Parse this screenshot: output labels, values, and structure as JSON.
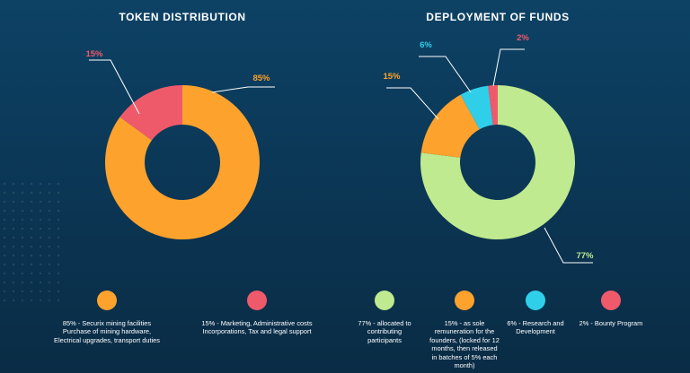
{
  "chart_data": [
    {
      "type": "pie",
      "title": "TOKEN DISTRIBUTION",
      "slices": [
        {
          "label": "85%",
          "value": 85,
          "color": "#fda22c",
          "legend": "85% - Securix mining facilities Purchase of mining hardware, Electrical upgrades, transport duties"
        },
        {
          "label": "15%",
          "value": 15,
          "color": "#ef5a6b",
          "legend": "15% - Marketing, Administrative costs Incorporations, Tax and legal support"
        }
      ]
    },
    {
      "type": "pie",
      "title": "DEPLOYMENT OF FUNDS",
      "slices": [
        {
          "label": "77%",
          "value": 77,
          "color": "#bfea8f",
          "legend": "77% - allocated to contributing participants"
        },
        {
          "label": "15%",
          "value": 15,
          "color": "#fda22c",
          "legend": "15% - as sole remuneration for the founders, (locked for 12 months, then released in batches of 5% each month)"
        },
        {
          "label": "6%",
          "value": 6,
          "color": "#2fcfea",
          "legend": "6% - Research and Development"
        },
        {
          "label": "2%",
          "value": 2,
          "color": "#ef5a6b",
          "legend": "2% - Bounty Program"
        }
      ]
    }
  ]
}
